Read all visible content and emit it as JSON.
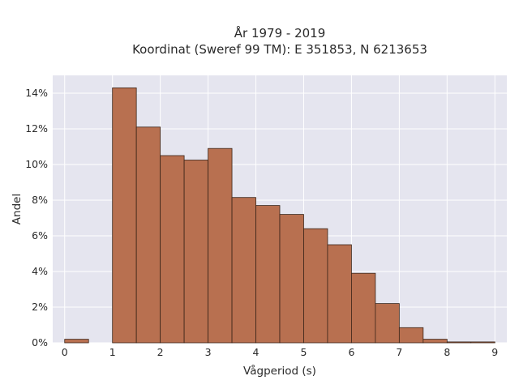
{
  "chart_data": {
    "type": "bar",
    "title_line1": "År 1979 - 2019",
    "title_line2": "Koordinat (Sweref 99 TM): E 351853, N 6213653",
    "xlabel": "Vågperiod (s)",
    "ylabel": "Andel",
    "xlim": [
      -0.25,
      9.25
    ],
    "ylim": [
      0,
      15
    ],
    "x_ticks": [
      0,
      1,
      2,
      3,
      4,
      5,
      6,
      7,
      8,
      9
    ],
    "y_ticks": [
      0,
      2,
      4,
      6,
      8,
      10,
      12,
      14
    ],
    "y_tick_labels": [
      "0%",
      "2%",
      "4%",
      "6%",
      "8%",
      "10%",
      "12%",
      "14%"
    ],
    "bin_width": 0.5,
    "bins": [
      {
        "start": 0.0,
        "value": 0.2
      },
      {
        "start": 0.5,
        "value": 0.0
      },
      {
        "start": 1.0,
        "value": 14.3
      },
      {
        "start": 1.5,
        "value": 12.1
      },
      {
        "start": 2.0,
        "value": 10.5
      },
      {
        "start": 2.5,
        "value": 10.25
      },
      {
        "start": 3.0,
        "value": 10.9
      },
      {
        "start": 3.5,
        "value": 8.15
      },
      {
        "start": 4.0,
        "value": 7.7
      },
      {
        "start": 4.5,
        "value": 7.2
      },
      {
        "start": 5.0,
        "value": 6.4
      },
      {
        "start": 5.5,
        "value": 5.5
      },
      {
        "start": 6.0,
        "value": 3.9
      },
      {
        "start": 6.5,
        "value": 2.2
      },
      {
        "start": 7.0,
        "value": 0.85
      },
      {
        "start": 7.5,
        "value": 0.2
      },
      {
        "start": 8.0,
        "value": 0.05
      },
      {
        "start": 8.5,
        "value": 0.05
      }
    ],
    "grid": true,
    "colors": {
      "background": "#e5e5ef",
      "grid": "#ffffff",
      "bar_fill": "#b87050",
      "bar_edge": "#3a2418"
    }
  }
}
